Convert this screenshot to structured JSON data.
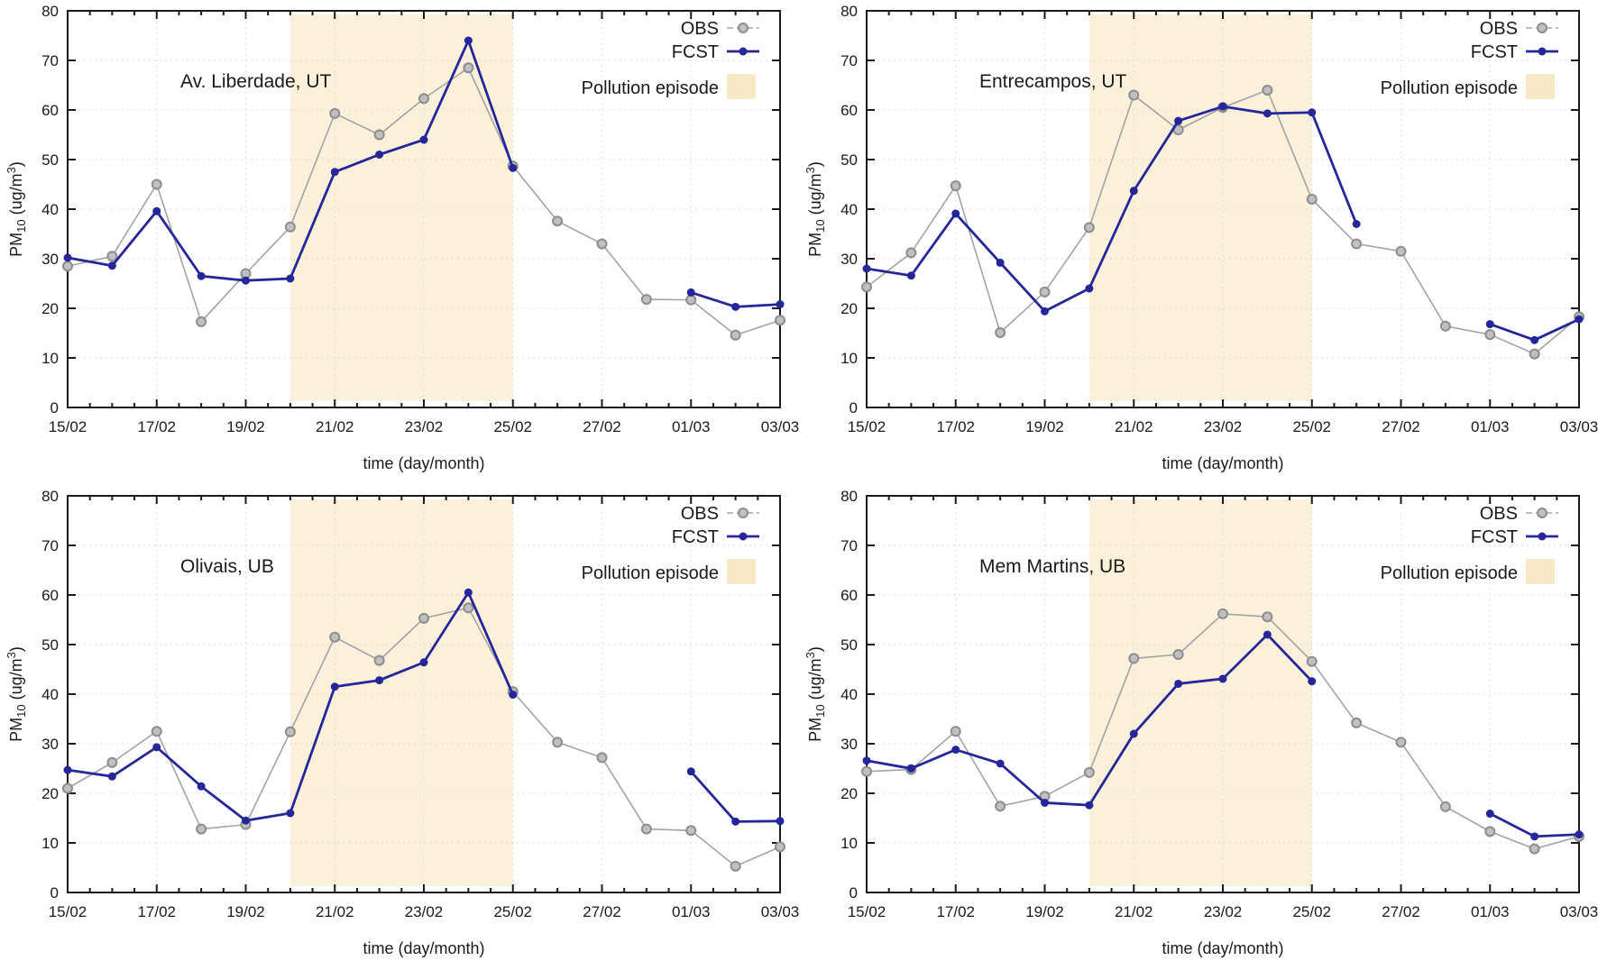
{
  "figure": {
    "xlabel": "time (day/month)",
    "ylabel": {
      "pm": "PM",
      "pm_sub": "10",
      "unit_open": " (ug/m",
      "unit_sup": "3",
      "unit_close": ")"
    },
    "legend": {
      "obs": "OBS",
      "fcst": "FCST",
      "episode": "Pollution episode"
    },
    "colors": {
      "obs": "#a3a3a3",
      "obs_marker_fill": "#c0c0c0",
      "obs_marker_stroke": "#8d8d8d",
      "fcst": "#26269b",
      "band": "#fbf0d9",
      "band_legend": "#f8e8c8",
      "axis": "#1a1a1a",
      "grid": "#dedede"
    },
    "x_categories": [
      "15/02",
      "16/02",
      "17/02",
      "18/02",
      "19/02",
      "20/02",
      "21/02",
      "22/02",
      "23/02",
      "24/02",
      "25/02",
      "26/02",
      "27/02",
      "28/02",
      "01/03",
      "02/03",
      "03/03"
    ],
    "x_tick_labels": [
      "15/02",
      "17/02",
      "19/02",
      "21/02",
      "23/02",
      "25/02",
      "27/02",
      "01/03",
      "03/03"
    ],
    "y_ticks": [
      0,
      10,
      20,
      30,
      40,
      50,
      60,
      70,
      80
    ],
    "ylim": [
      0,
      80
    ]
  },
  "chart_data": [
    {
      "type": "line",
      "title": "Av. Liberdade, UT",
      "xlabel": "time (day/month)",
      "ylabel": "PM10 (ug/m3)",
      "ylim": [
        0,
        80
      ],
      "x": [
        "15/02",
        "16/02",
        "17/02",
        "18/02",
        "19/02",
        "20/02",
        "21/02",
        "22/02",
        "23/02",
        "24/02",
        "25/02",
        "26/02",
        "27/02",
        "28/02",
        "01/03",
        "02/03",
        "03/03"
      ],
      "series": [
        {
          "name": "OBS",
          "values": [
            28.5,
            30.5,
            45.0,
            17.3,
            27.0,
            36.4,
            59.3,
            55.0,
            62.3,
            68.5,
            48.7,
            37.6,
            33.0,
            21.8,
            21.7,
            14.6,
            17.6
          ]
        },
        {
          "name": "FCST",
          "values": [
            30.2,
            28.6,
            39.6,
            26.5,
            25.6,
            26.0,
            47.5,
            51.0,
            54.0,
            74.0,
            48.3,
            null,
            null,
            null,
            23.2,
            20.3,
            20.8
          ]
        }
      ],
      "annotation": {
        "label": "Pollution episode",
        "from": "20/02",
        "to": "25/02"
      },
      "legend_position": "top-right",
      "grid": true
    },
    {
      "type": "line",
      "title": "Entrecampos, UT",
      "xlabel": "time (day/month)",
      "ylabel": "PM10 (ug/m3)",
      "ylim": [
        0,
        80
      ],
      "x": [
        "15/02",
        "16/02",
        "17/02",
        "18/02",
        "19/02",
        "20/02",
        "21/02",
        "22/02",
        "23/02",
        "24/02",
        "25/02",
        "26/02",
        "27/02",
        "28/02",
        "01/03",
        "02/03",
        "03/03"
      ],
      "series": [
        {
          "name": "OBS",
          "values": [
            24.3,
            31.2,
            44.7,
            15.1,
            23.3,
            36.3,
            63.0,
            56.0,
            60.5,
            64.0,
            42.0,
            33.0,
            31.5,
            16.4,
            14.7,
            10.8,
            18.3
          ]
        },
        {
          "name": "FCST",
          "values": [
            28.0,
            26.6,
            39.1,
            29.2,
            19.4,
            24.0,
            43.7,
            57.8,
            60.7,
            59.3,
            59.5,
            37.0,
            null,
            null,
            16.8,
            13.6,
            17.8
          ]
        }
      ],
      "annotation": {
        "label": "Pollution episode",
        "from": "20/02",
        "to": "25/02"
      },
      "legend_position": "top-right",
      "grid": true
    },
    {
      "type": "line",
      "title": "Olivais, UB",
      "xlabel": "time (day/month)",
      "ylabel": "PM10 (ug/m3)",
      "ylim": [
        0,
        80
      ],
      "x": [
        "15/02",
        "16/02",
        "17/02",
        "18/02",
        "19/02",
        "20/02",
        "21/02",
        "22/02",
        "23/02",
        "24/02",
        "25/02",
        "26/02",
        "27/02",
        "28/02",
        "01/03",
        "02/03",
        "03/03"
      ],
      "series": [
        {
          "name": "OBS",
          "values": [
            21.0,
            26.2,
            32.5,
            12.8,
            13.7,
            32.4,
            51.5,
            46.8,
            55.3,
            57.4,
            40.5,
            30.3,
            27.2,
            12.8,
            12.5,
            5.3,
            9.2
          ]
        },
        {
          "name": "FCST",
          "values": [
            24.7,
            23.4,
            29.3,
            21.4,
            14.5,
            16.0,
            41.5,
            42.8,
            46.4,
            60.5,
            39.9,
            null,
            null,
            null,
            24.4,
            14.3,
            14.4
          ]
        }
      ],
      "annotation": {
        "label": "Pollution episode",
        "from": "20/02",
        "to": "25/02"
      },
      "legend_position": "top-right",
      "grid": true
    },
    {
      "type": "line",
      "title": "Mem Martins, UB",
      "xlabel": "time (day/month)",
      "ylabel": "PM10 (ug/m3)",
      "ylim": [
        0,
        80
      ],
      "x": [
        "15/02",
        "16/02",
        "17/02",
        "18/02",
        "19/02",
        "20/02",
        "21/02",
        "22/02",
        "23/02",
        "24/02",
        "25/02",
        "26/02",
        "27/02",
        "28/02",
        "01/03",
        "02/03",
        "03/03"
      ],
      "series": [
        {
          "name": "OBS",
          "values": [
            24.4,
            24.8,
            32.5,
            17.4,
            19.4,
            24.2,
            47.2,
            48.0,
            56.2,
            55.6,
            46.6,
            34.2,
            30.3,
            17.3,
            12.3,
            8.8,
            11.3
          ]
        },
        {
          "name": "FCST",
          "values": [
            26.6,
            25.0,
            28.8,
            26.0,
            18.1,
            17.6,
            32.0,
            42.1,
            43.1,
            52.0,
            42.6,
            null,
            null,
            null,
            15.9,
            11.3,
            11.7
          ]
        }
      ],
      "annotation": {
        "label": "Pollution episode",
        "from": "20/02",
        "to": "25/02"
      },
      "legend_position": "top-right",
      "grid": true
    }
  ]
}
